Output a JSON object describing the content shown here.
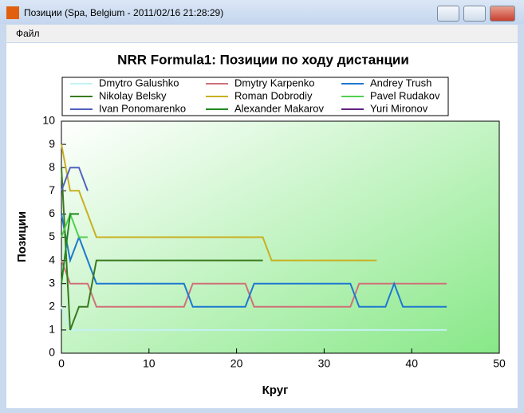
{
  "window": {
    "title": "Позиции (Spa, Belgium - 2011/02/16 21:28:29)",
    "menu": [
      "Файл"
    ]
  },
  "chart_data": {
    "type": "line",
    "title": "NRR Formula1: Позиции по ходу дистанции",
    "x_label": "Круг",
    "y_label": "Позиции",
    "xlim": [
      0,
      50
    ],
    "xticks": [
      0,
      10,
      20,
      30,
      40,
      50
    ],
    "ylim": [
      0,
      10
    ],
    "yticks": [
      0,
      1,
      2,
      3,
      4,
      5,
      6,
      7,
      8,
      9,
      10
    ],
    "series": [
      {
        "name": "Dmytro Galushko",
        "color": "#c4f2f2",
        "x": [
          0,
          1,
          44
        ],
        "values": [
          2,
          1,
          1
        ]
      },
      {
        "name": "Dmytry Karpenko",
        "color": "#d07078",
        "x": [
          0,
          1,
          3,
          4,
          14,
          15,
          21,
          22,
          33,
          34,
          44
        ],
        "values": [
          4,
          3,
          3,
          2,
          2,
          3,
          3,
          2,
          2,
          3,
          3
        ]
      },
      {
        "name": "Andrey Trush",
        "color": "#1e78d0",
        "x": [
          0,
          1,
          2,
          4,
          14,
          15,
          21,
          22,
          33,
          34,
          37,
          38,
          39,
          44
        ],
        "values": [
          6,
          4,
          5,
          3,
          3,
          2,
          2,
          3,
          3,
          2,
          2,
          3,
          2,
          2
        ]
      },
      {
        "name": "Nikolay Belsky",
        "color": "#3a7a1e",
        "x": [
          0,
          1,
          2,
          3,
          4,
          23
        ],
        "values": [
          8,
          1,
          2,
          2,
          4,
          4
        ]
      },
      {
        "name": "Roman Dobrodiy",
        "color": "#c8b020",
        "x": [
          0,
          1,
          2,
          4,
          23,
          24,
          36
        ],
        "values": [
          9,
          7,
          7,
          5,
          5,
          4,
          4
        ]
      },
      {
        "name": "Pavel Rudakov",
        "color": "#50d050",
        "x": [
          0,
          1,
          2,
          3
        ],
        "values": [
          5,
          6,
          5,
          5
        ]
      },
      {
        "name": "Ivan Ponomarenko",
        "color": "#5060c0",
        "x": [
          0,
          1,
          2,
          3
        ],
        "values": [
          7,
          8,
          8,
          7
        ]
      },
      {
        "name": "Alexander Makarov",
        "color": "#208a20",
        "x": [
          0,
          1,
          2
        ],
        "values": [
          3,
          6,
          6
        ]
      },
      {
        "name": "Yuri Mironov",
        "color": "#602080",
        "x": [],
        "values": []
      }
    ]
  }
}
